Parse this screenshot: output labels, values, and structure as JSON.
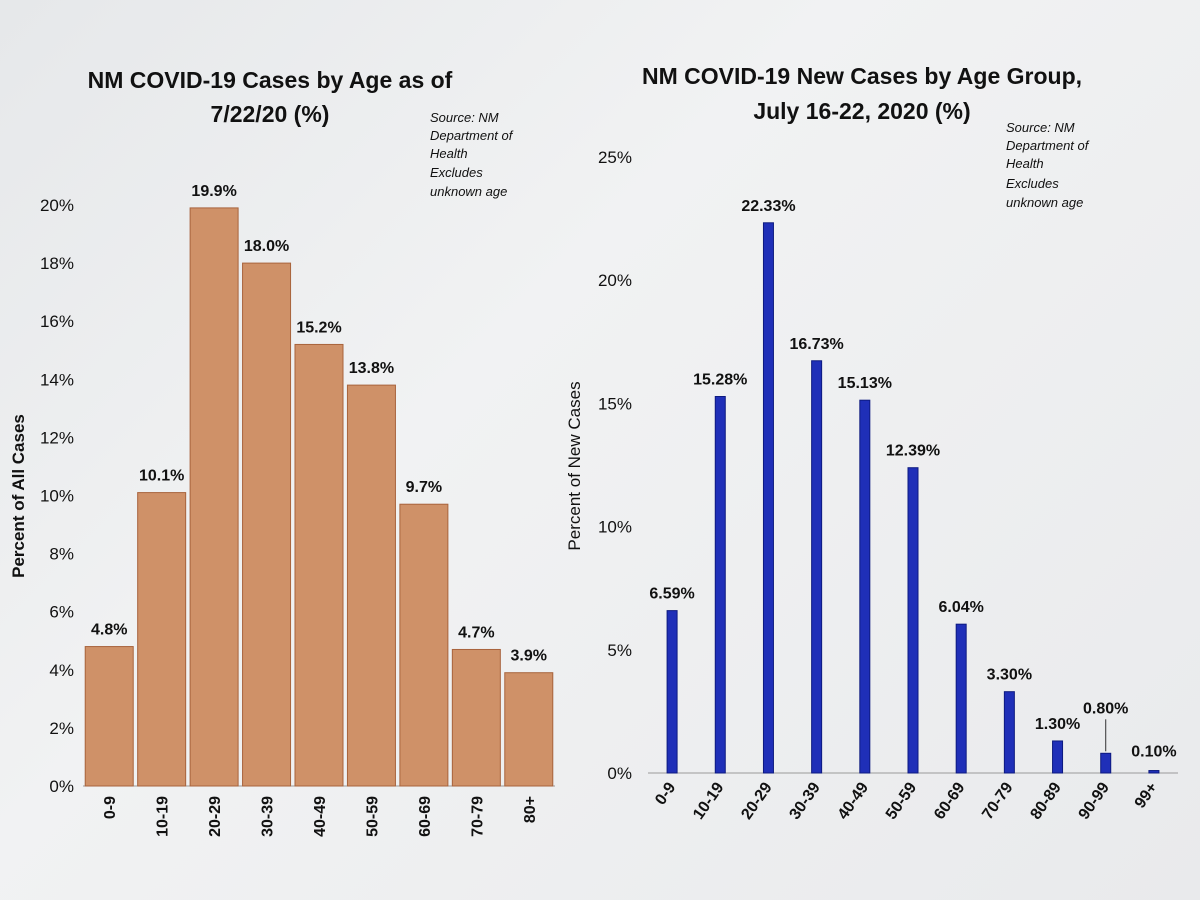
{
  "chart_data": [
    {
      "type": "bar",
      "title_lines": [
        "NM COVID-19 Cases by Age as of",
        "7/22/20 (%)"
      ],
      "source_note": [
        "Source: NM",
        "Department of",
        "Health",
        "Excludes",
        "unknown age"
      ],
      "ylabel": "Percent of All Cases",
      "xlabel": "",
      "ylim": [
        0,
        20
      ],
      "yticks": [
        0,
        2,
        4,
        6,
        8,
        10,
        12,
        14,
        16,
        18,
        20
      ],
      "ytick_labels": [
        "0%",
        "2%",
        "4%",
        "6%",
        "8%",
        "10%",
        "12%",
        "14%",
        "16%",
        "18%",
        "20%"
      ],
      "categories": [
        "0-9",
        "10-19",
        "20-29",
        "30-39",
        "40-49",
        "50-59",
        "60-69",
        "70-79",
        "80+"
      ],
      "values": [
        4.8,
        10.1,
        19.9,
        18.0,
        15.2,
        13.8,
        9.7,
        4.7,
        3.9
      ],
      "data_labels": [
        "4.8%",
        "10.1%",
        "19.9%",
        "18.0%",
        "15.2%",
        "13.8%",
        "9.7%",
        "4.7%",
        "3.9%"
      ],
      "bar_color": "#cf9168",
      "bar_edge": "#a8633c",
      "grid": false,
      "legend": "none"
    },
    {
      "type": "bar",
      "title_lines": [
        "NM COVID-19 New Cases by Age Group,",
        "July 16-22, 2020 (%)"
      ],
      "source_note": [
        "Source: NM",
        "Department of",
        "Health",
        "Excludes",
        "unknown age"
      ],
      "ylabel": "Percent of New Cases",
      "xlabel": "",
      "ylim": [
        0,
        25
      ],
      "yticks": [
        0,
        5,
        10,
        15,
        20,
        25
      ],
      "ytick_labels": [
        "0%",
        "5%",
        "10%",
        "15%",
        "20%",
        "25%"
      ],
      "categories": [
        "0-9",
        "10-19",
        "20-29",
        "30-39",
        "40-49",
        "50-59",
        "60-69",
        "70-79",
        "80-89",
        "90-99",
        "99+"
      ],
      "values": [
        6.59,
        15.28,
        22.33,
        16.73,
        15.13,
        12.39,
        6.04,
        3.3,
        1.3,
        0.8,
        0.1
      ],
      "data_labels": [
        "6.59%",
        "15.28%",
        "22.33%",
        "16.73%",
        "15.13%",
        "12.39%",
        "6.04%",
        "3.30%",
        "1.30%",
        "0.80%",
        "0.10%"
      ],
      "bar_color": "#1f2fb8",
      "bar_edge": "#0d1a80",
      "grid": false,
      "legend": "none"
    }
  ]
}
